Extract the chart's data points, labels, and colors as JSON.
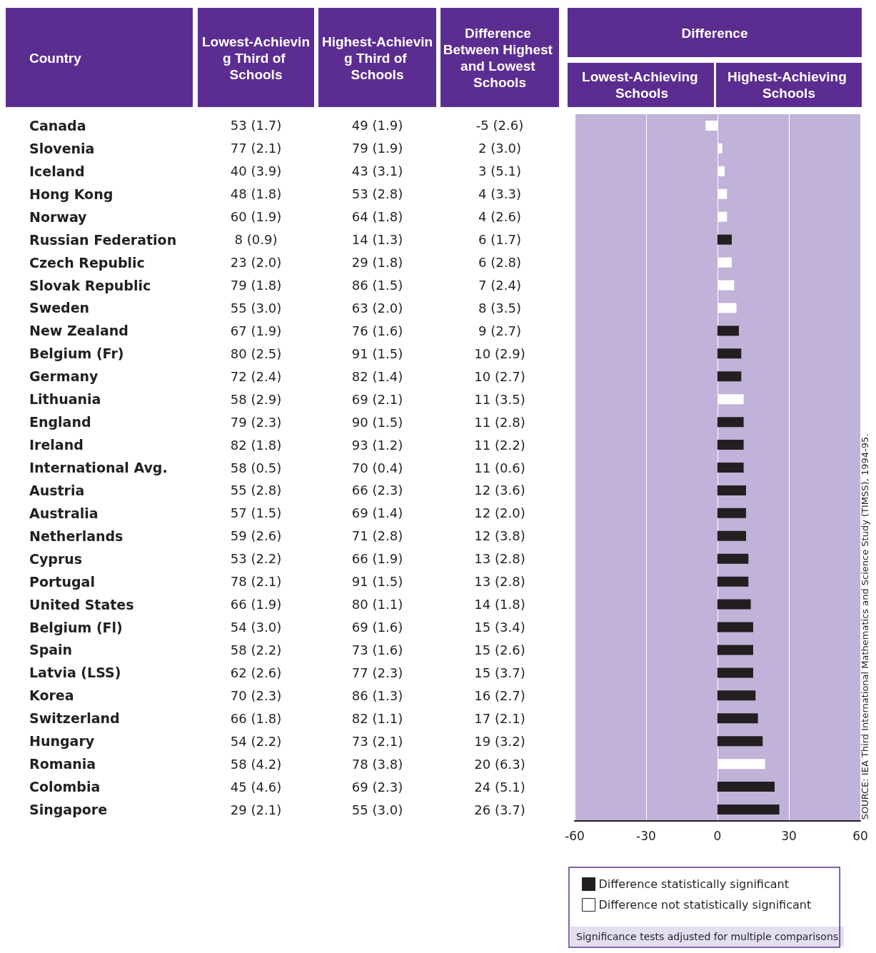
{
  "chart_data": [
    {
      "type": "other",
      "ylabel": "Country",
      "categories": [
        "Canada",
        "Slovenia",
        "Iceland",
        "Hong Kong",
        "Norway",
        "Russian Federation",
        "Czech Republic",
        "Slovak Republic",
        "Sweden",
        "New Zealand",
        "Belgium (Fr)",
        "Germany",
        "Lithuania",
        "England",
        "Ireland",
        "International Avg.",
        "Austria",
        "Australia",
        "Netherlands",
        "Cyprus",
        "Portugal",
        "United States",
        "Belgium (Fl)",
        "Spain",
        "Latvia (LSS)",
        "Korea",
        "Switzerland",
        "Hungary",
        "Romania",
        "Colombia",
        "Singapore"
      ],
      "series": [
        {
          "name": "Lowest-Achieving Third of Schools",
          "values": [
            53,
            77,
            40,
            48,
            60,
            8,
            23,
            79,
            55,
            67,
            80,
            72,
            58,
            79,
            82,
            58,
            55,
            57,
            59,
            53,
            78,
            66,
            54,
            58,
            62,
            70,
            66,
            54,
            58,
            45,
            29
          ],
          "value_labels": [
            "53 (1.7)",
            "77 (2.1)",
            "40 (3.9)",
            "48 (1.8)",
            "60 (1.9)",
            "8 (0.9)",
            "23 (2.0)",
            "79 (1.8)",
            "55 (3.0)",
            "67 (1.9)",
            "80 (2.5)",
            "72 (2.4)",
            "58 (2.9)",
            "79 (2.3)",
            "82 (1.8)",
            "58 (0.5)",
            "55 (2.8)",
            "57 (1.5)",
            "59 (2.6)",
            "53 (2.2)",
            "78 (2.1)",
            "66 (1.9)",
            "54 (3.0)",
            "58 (2.2)",
            "62 (2.6)",
            "70 (2.3)",
            "66 (1.8)",
            "54 (2.2)",
            "58 (4.2)",
            "45 (4.6)",
            "29 (2.1)"
          ]
        },
        {
          "name": "Highest-Achieving Third of Schools",
          "values": [
            49,
            79,
            43,
            53,
            64,
            14,
            29,
            86,
            63,
            76,
            91,
            82,
            69,
            90,
            93,
            70,
            66,
            69,
            71,
            66,
            91,
            80,
            69,
            73,
            77,
            86,
            82,
            73,
            78,
            69,
            55
          ],
          "value_labels": [
            "49 (1.9)",
            "79 (1.9)",
            "43 (3.1)",
            "53 (2.8)",
            "64 (1.8)",
            "14 (1.3)",
            "29 (1.8)",
            "86 (1.5)",
            "63 (2.0)",
            "76 (1.6)",
            "91 (1.5)",
            "82 (1.4)",
            "69 (2.1)",
            "90 (1.5)",
            "93 (1.2)",
            "70 (0.4)",
            "66 (2.3)",
            "69 (1.4)",
            "71 (2.8)",
            "66 (1.9)",
            "91 (1.5)",
            "80 (1.1)",
            "69 (1.6)",
            "73 (1.6)",
            "77 (2.3)",
            "86 (1.3)",
            "82 (1.1)",
            "73 (2.1)",
            "78 (3.8)",
            "69 (2.3)",
            "55 (3.0)"
          ]
        },
        {
          "name": "Difference Between Highest and Lowest Schools",
          "values": [
            -5,
            2,
            3,
            4,
            4,
            6,
            6,
            7,
            8,
            9,
            10,
            10,
            11,
            11,
            11,
            11,
            12,
            12,
            12,
            13,
            13,
            14,
            15,
            15,
            15,
            16,
            17,
            19,
            20,
            24,
            26
          ],
          "value_labels": [
            "-5 (2.6)",
            "2 (3.0)",
            "3 (5.1)",
            "4 (3.3)",
            "4 (2.6)",
            "6 (1.7)",
            "6 (2.8)",
            "7 (2.4)",
            "8 (3.5)",
            "9 (2.7)",
            "10 (2.9)",
            "10 (2.7)",
            "11 (3.5)",
            "11 (2.8)",
            "11 (2.2)",
            "11 (0.6)",
            "12 (3.6)",
            "12 (2.0)",
            "12 (3.8)",
            "13 (2.8)",
            "13 (2.8)",
            "14 (1.8)",
            "15 (3.4)",
            "15 (2.6)",
            "15 (3.7)",
            "16 (2.7)",
            "17 (2.1)",
            "19 (3.2)",
            "20 (6.3)",
            "24 (5.1)",
            "26 (3.7)"
          ]
        }
      ]
    },
    {
      "type": "bar",
      "orientation": "horizontal",
      "title": "Difference",
      "tick_labels": "x",
      "categories": [
        null,
        null,
        null,
        null,
        null,
        null,
        null,
        null,
        null,
        null,
        null,
        null,
        null,
        null,
        null,
        null,
        null,
        null,
        null,
        null,
        null,
        null,
        null,
        null,
        null,
        null,
        null,
        null,
        null,
        null,
        null
      ],
      "series": [
        {
          "name": "Difference statistically significant",
          "color": "#231f20",
          "values": [
            null,
            null,
            null,
            null,
            null,
            6,
            null,
            null,
            null,
            9,
            10,
            10,
            null,
            11,
            11,
            11,
            12,
            12,
            12,
            13,
            13,
            14,
            15,
            15,
            15,
            16,
            17,
            19,
            null,
            24,
            26
          ]
        },
        {
          "name": "Difference not statistically significant",
          "color": "#ffffff",
          "values": [
            -5,
            2,
            3,
            4,
            4,
            null,
            6,
            7,
            8,
            null,
            null,
            null,
            11,
            null,
            null,
            null,
            null,
            null,
            null,
            null,
            null,
            null,
            null,
            null,
            null,
            null,
            null,
            null,
            20,
            null,
            null
          ]
        }
      ],
      "xlim": [
        -60,
        60
      ],
      "xticks": [
        -60,
        -30,
        0,
        30,
        60
      ],
      "grid": "x",
      "legend": "bottom",
      "annotations": [
        "Lowest-Achieving Schools",
        "Highest-Achieving Schools",
        "Significance tests adjusted for multiple comparisons",
        "SOURCE: IEA Third International Mathematics and Science Study (TIMSS), 1994-95."
      ]
    }
  ]
}
